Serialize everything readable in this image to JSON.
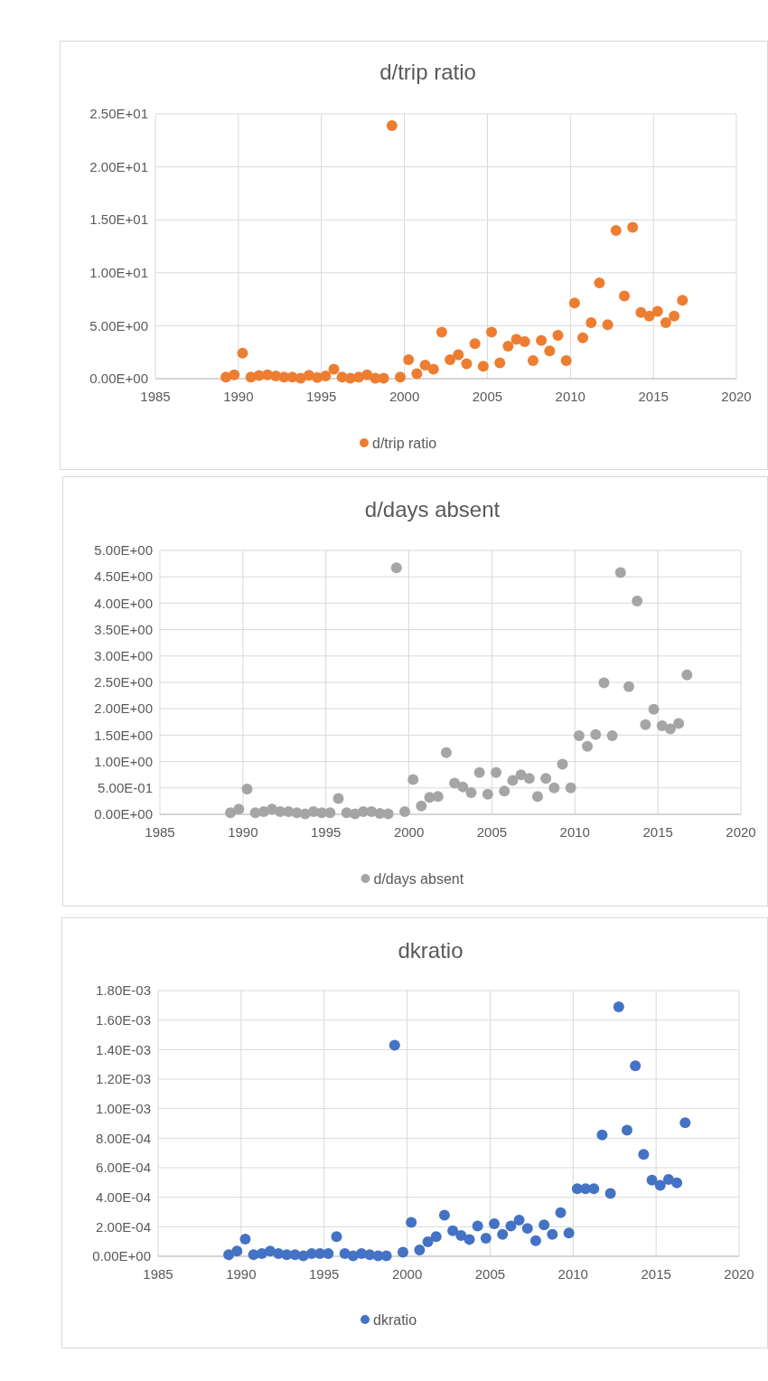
{
  "chart_data": [
    {
      "type": "scatter",
      "title": "d/trip ratio",
      "x": [
        1989.25,
        1989.75,
        1990.25,
        1990.75,
        1991.25,
        1991.75,
        1992.25,
        1992.75,
        1993.25,
        1993.75,
        1994.25,
        1994.75,
        1995.25,
        1995.75,
        1996.25,
        1996.75,
        1997.25,
        1997.75,
        1998.25,
        1998.75,
        1999.25,
        1999.75,
        2000.25,
        2000.75,
        2001.25,
        2001.75,
        2002.25,
        2002.75,
        2003.25,
        2003.75,
        2004.25,
        2004.75,
        2005.25,
        2005.75,
        2006.25,
        2006.75,
        2007.25,
        2007.75,
        2008.25,
        2008.75,
        2009.25,
        2009.75,
        2010.25,
        2010.75,
        2011.25,
        2011.75,
        2012.25,
        2012.75,
        2013.25,
        2013.75,
        2014.25,
        2014.75,
        2015.25,
        2015.75,
        2016.25,
        2016.75
      ],
      "series": [
        {
          "name": "d/trip ratio",
          "color": "#ed7d31",
          "values": [
            0.15,
            0.36,
            2.4,
            0.15,
            0.3,
            0.36,
            0.26,
            0.15,
            0.15,
            0.05,
            0.33,
            0.1,
            0.26,
            0.9,
            0.15,
            0.05,
            0.15,
            0.36,
            0.05,
            0.05,
            23.9,
            0.15,
            1.8,
            0.47,
            1.28,
            0.9,
            4.4,
            1.8,
            2.26,
            1.4,
            3.3,
            1.17,
            4.4,
            1.5,
            3.07,
            3.72,
            3.5,
            1.7,
            3.6,
            2.63,
            4.1,
            1.7,
            7.15,
            3.87,
            5.3,
            9.05,
            5.1,
            14.0,
            7.8,
            14.3,
            6.24,
            5.9,
            6.35,
            5.3,
            5.9,
            7.4
          ]
        }
      ],
      "xlim": [
        1985,
        2020
      ],
      "xticks": [
        1985,
        1990,
        1995,
        2000,
        2005,
        2010,
        2015,
        2020
      ],
      "ylim": [
        0,
        25
      ],
      "yticks": [
        {
          "value": 0,
          "label": "0.00E+00"
        },
        {
          "value": 5,
          "label": "5.00E+00"
        },
        {
          "value": 10,
          "label": "1.00E+01"
        },
        {
          "value": 15,
          "label": "1.50E+01"
        },
        {
          "value": 20,
          "label": "2.00E+01"
        },
        {
          "value": 25,
          "label": "2.50E+01"
        }
      ],
      "grid": true,
      "legend": "bottom",
      "marker": "circle"
    },
    {
      "type": "scatter",
      "title": "d/days absent",
      "x": [
        1989.25,
        1989.75,
        1990.25,
        1990.75,
        1991.25,
        1991.75,
        1992.25,
        1992.75,
        1993.25,
        1993.75,
        1994.25,
        1994.75,
        1995.25,
        1995.75,
        1996.25,
        1996.75,
        1997.25,
        1997.75,
        1998.25,
        1998.75,
        1999.25,
        1999.75,
        2000.25,
        2000.75,
        2001.25,
        2001.75,
        2002.25,
        2002.75,
        2003.25,
        2003.75,
        2004.25,
        2004.75,
        2005.25,
        2005.75,
        2006.25,
        2006.75,
        2007.25,
        2007.75,
        2008.25,
        2008.75,
        2009.25,
        2009.75,
        2010.25,
        2010.75,
        2011.25,
        2011.75,
        2012.25,
        2012.75,
        2013.25,
        2013.75,
        2014.25,
        2014.75,
        2015.25,
        2015.75,
        2016.25,
        2016.75
      ],
      "series": [
        {
          "name": "d/days absent",
          "color": "#a5a5a5",
          "values": [
            0.03,
            0.1,
            0.48,
            0.03,
            0.05,
            0.1,
            0.05,
            0.05,
            0.03,
            0.01,
            0.05,
            0.03,
            0.03,
            0.3,
            0.03,
            0.01,
            0.05,
            0.05,
            0.015,
            0.01,
            4.67,
            0.05,
            0.66,
            0.16,
            0.32,
            0.34,
            1.17,
            0.59,
            0.52,
            0.41,
            0.79,
            0.38,
            0.79,
            0.44,
            0.64,
            0.75,
            0.68,
            0.34,
            0.68,
            0.5,
            0.95,
            0.5,
            1.49,
            1.29,
            1.51,
            2.49,
            1.49,
            4.58,
            2.42,
            4.04,
            1.7,
            1.99,
            1.68,
            1.62,
            1.72,
            2.64
          ]
        }
      ],
      "xlim": [
        1985,
        2020
      ],
      "xticks": [
        1985,
        1990,
        1995,
        2000,
        2005,
        2010,
        2015,
        2020
      ],
      "ylim": [
        0,
        5
      ],
      "yticks": [
        {
          "value": 0,
          "label": "0.00E+00"
        },
        {
          "value": 0.5,
          "label": "5.00E-01"
        },
        {
          "value": 1,
          "label": "1.00E+00"
        },
        {
          "value": 1.5,
          "label": "1.50E+00"
        },
        {
          "value": 2,
          "label": "2.00E+00"
        },
        {
          "value": 2.5,
          "label": "2.50E+00"
        },
        {
          "value": 3,
          "label": "3.00E+00"
        },
        {
          "value": 3.5,
          "label": "3.50E+00"
        },
        {
          "value": 4,
          "label": "4.00E+00"
        },
        {
          "value": 4.5,
          "label": "4.50E+00"
        },
        {
          "value": 5,
          "label": "5.00E+00"
        }
      ],
      "grid": true,
      "legend": "bottom",
      "marker": "circle"
    },
    {
      "type": "scatter",
      "title": "dkratio",
      "x": [
        1989.25,
        1989.75,
        1990.25,
        1990.75,
        1991.25,
        1991.75,
        1992.25,
        1992.75,
        1993.25,
        1993.75,
        1994.25,
        1994.75,
        1995.25,
        1995.75,
        1996.25,
        1996.75,
        1997.25,
        1997.75,
        1998.25,
        1998.75,
        1999.25,
        1999.75,
        2000.25,
        2000.75,
        2001.25,
        2001.75,
        2002.25,
        2002.75,
        2003.25,
        2003.75,
        2004.25,
        2004.75,
        2005.25,
        2005.75,
        2006.25,
        2006.75,
        2007.25,
        2007.75,
        2008.25,
        2008.75,
        2009.25,
        2009.75,
        2010.25,
        2010.75,
        2011.25,
        2011.75,
        2012.25,
        2012.75,
        2013.25,
        2013.75,
        2014.25,
        2014.75,
        2015.25,
        2015.75,
        2016.25,
        2016.75
      ],
      "series": [
        {
          "name": "dkratio",
          "color": "#4472c4",
          "values": [
            1e-05,
            3.5e-05,
            0.000117,
            1e-05,
            1.9e-05,
            3.5e-05,
            1.9e-05,
            1e-05,
            1e-05,
            3e-06,
            1.9e-05,
            1.9e-05,
            1.9e-05,
            0.000133,
            1.9e-05,
            3e-06,
            1.9e-05,
            1e-05,
            3e-06,
            3e-06,
            0.00143,
            2.7e-05,
            0.000229,
            4.3e-05,
            9.8e-05,
            0.000133,
            0.000279,
            0.000173,
            0.000141,
            0.000114,
            0.000205,
            0.000122,
            0.000221,
            0.000149,
            0.000205,
            0.000245,
            0.000189,
            0.000106,
            0.000213,
            0.000149,
            0.000295,
            0.000157,
            0.000457,
            0.000457,
            0.000457,
            0.000822,
            0.000426,
            0.00169,
            0.000854,
            0.00129,
            0.000691,
            0.000516,
            0.000481,
            0.000521,
            0.000497,
            0.000904
          ]
        }
      ],
      "xlim": [
        1985,
        2020
      ],
      "xticks": [
        1985,
        1990,
        1995,
        2000,
        2005,
        2010,
        2015,
        2020
      ],
      "ylim": [
        0,
        0.0018
      ],
      "yticks": [
        {
          "value": 0,
          "label": "0.00E+00"
        },
        {
          "value": 0.0002,
          "label": "2.00E-04"
        },
        {
          "value": 0.0004,
          "label": "4.00E-04"
        },
        {
          "value": 0.0006,
          "label": "6.00E-04"
        },
        {
          "value": 0.0008,
          "label": "8.00E-04"
        },
        {
          "value": 0.001,
          "label": "1.00E-03"
        },
        {
          "value": 0.0012,
          "label": "1.20E-03"
        },
        {
          "value": 0.0014,
          "label": "1.40E-03"
        },
        {
          "value": 0.0016,
          "label": "1.60E-03"
        },
        {
          "value": 0.0018,
          "label": "1.80E-03"
        }
      ],
      "grid": true,
      "legend": "bottom",
      "marker": "circle"
    }
  ]
}
